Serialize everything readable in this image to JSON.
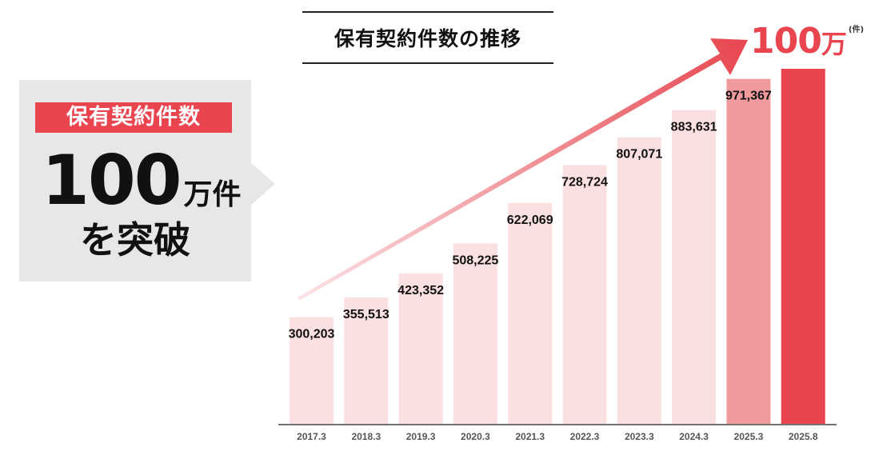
{
  "callout": {
    "badge": "保有契約件数",
    "number": "100",
    "unit": "万件",
    "subtext": "を突破"
  },
  "chart_title": "保有契約件数の推移",
  "goal": {
    "number": "100",
    "man": "万",
    "unit": "(件)"
  },
  "colors": {
    "accent": "#e8454f",
    "bar_light": "#fbe0e2",
    "bar_mid": "#f09a9e",
    "bar_strong": "#e8454f",
    "callout_bg": "#e7e7e8"
  },
  "chart_data": {
    "type": "bar",
    "title": "保有契約件数の推移",
    "categories": [
      "2017.3",
      "2018.3",
      "2019.3",
      "2020.3",
      "2021.3",
      "2022.3",
      "2023.3",
      "2024.3",
      "2025.3",
      "2025.8"
    ],
    "values": [
      300203,
      355513,
      423352,
      508225,
      622069,
      728724,
      807071,
      883631,
      971367,
      1000000
    ],
    "value_labels": [
      "300,203",
      "355,513",
      "423,352",
      "508,225",
      "622,069",
      "728,724",
      "807,071",
      "883,631",
      "971,367",
      ""
    ],
    "ylim": [
      0,
      1000000
    ],
    "grid": false,
    "legend": "none"
  }
}
